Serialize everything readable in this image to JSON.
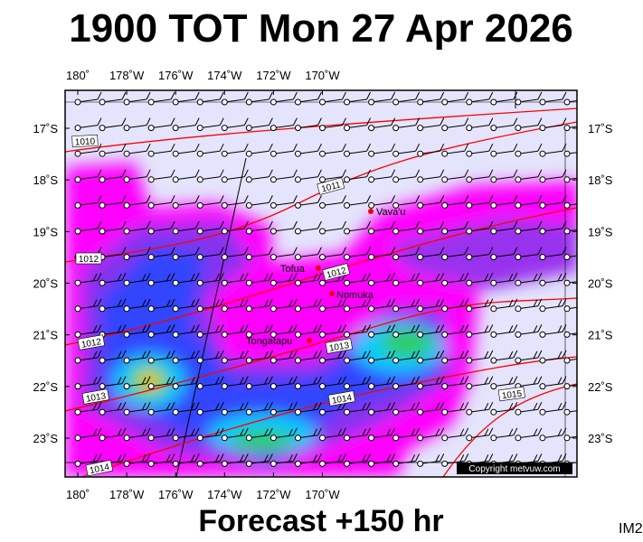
{
  "header": {
    "title": "1900 TOT Mon 27 Apr 2026"
  },
  "footer": {
    "text": "Forecast +150 hr",
    "image_id": "IM2"
  },
  "map": {
    "lon_labels": [
      "180˚",
      "178˚W",
      "176˚W",
      "174˚W",
      "172˚W",
      "170˚W"
    ],
    "lat_labels": [
      "17˚S",
      "18˚S",
      "19˚S",
      "20˚S",
      "21˚S",
      "22˚S",
      "23˚S"
    ],
    "places": [
      "Vava'u",
      "Tofua",
      "Nomuka",
      "Tongatapu"
    ],
    "isobar_labels": [
      "1010",
      "1011",
      "1012",
      "1012",
      "1012",
      "1013",
      "1013",
      "1014",
      "1014",
      "1015"
    ],
    "copyright": "Copyright metvuw.com"
  }
}
